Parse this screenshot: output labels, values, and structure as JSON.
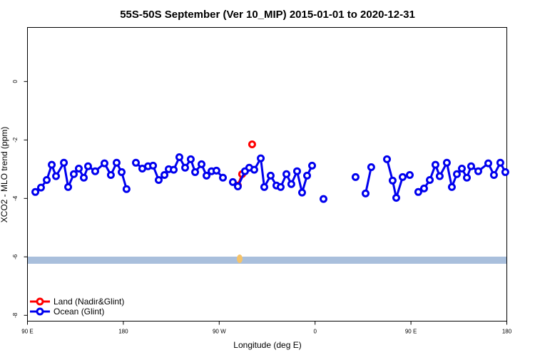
{
  "chart_data": {
    "type": "line",
    "title": "55S-50S September (Ver 10_MIP)   2015-01-01 to 2020-12-31",
    "x_label": "Longitude (deg E)",
    "y_label": "XCO2 - MLO trend (ppm)",
    "xlim": [
      90,
      540
    ],
    "ylim": [
      -8.2,
      1.85
    ],
    "xticks": [
      {
        "value": 90,
        "label": "90 E"
      },
      {
        "value": 180,
        "label": "180"
      },
      {
        "value": 270,
        "label": "90 W"
      },
      {
        "value": 360,
        "label": "0"
      },
      {
        "value": 450,
        "label": "90 E"
      },
      {
        "value": 540,
        "label": "180"
      }
    ],
    "yticks": [
      0,
      -2,
      -4,
      -6,
      -8
    ],
    "legend": "bottom-left",
    "series": [
      {
        "name": "Land (Nadir&Glint)",
        "color": "#ff0000",
        "x": [
          287.5,
          291.5,
          null,
          300.9
        ],
        "values": [
          -3.56,
          -3.17,
          null,
          -2.15
        ]
      },
      {
        "name": "Ocean (Glint)",
        "color": "#0000ee",
        "x": [
          97.4,
          102.7,
          108.1,
          112.8,
          116.8,
          124.2,
          128.2,
          133.5,
          138.2,
          142.9,
          146.9,
          153.6,
          162.3,
          168.3,
          173.7,
          178.4,
          183.0,
          null,
          191.8,
          197.8,
          203.2,
          207.9,
          213.2,
          218.6,
          222.6,
          227.3,
          232.6,
          238.0,
          243.3,
          247.4,
          253.4,
          258.1,
          262.8,
          267.4,
          273.5,
          null,
          282.8,
          287.5,
          294.2,
          298.2,
          302.9,
          309.0,
          312.3,
          318.3,
          323.7,
          327.7,
          333.1,
          337.7,
          343.1,
          347.8,
          352.5,
          357.2,
          null,
          367.9,
          null,
          398.0,
          null,
          407.4,
          412.7,
          null,
          427.5,
          432.8,
          436.2,
          442.2,
          448.9,
          null,
          456.9,
          462.3,
          467.7,
          473.0,
          477.0,
          483.7,
          488.4,
          493.1,
          497.8,
          502.5,
          506.5,
          513.2,
          522.6,
          527.9,
          533.9,
          538.6
        ],
        "values": [
          -3.78,
          -3.63,
          -3.37,
          -2.85,
          -3.24,
          -2.78,
          -3.61,
          -3.17,
          -2.98,
          -3.29,
          -2.9,
          -3.07,
          -2.8,
          -3.2,
          -2.78,
          -3.1,
          -3.68,
          null,
          -2.78,
          -2.98,
          -2.9,
          -2.88,
          -3.37,
          -3.2,
          -3.0,
          -3.02,
          -2.59,
          -2.95,
          -2.66,
          -3.1,
          -2.83,
          -3.22,
          -3.07,
          -3.05,
          -3.29,
          null,
          -3.44,
          -3.59,
          -3.07,
          -2.95,
          -3.02,
          -2.63,
          -3.61,
          -3.22,
          -3.56,
          -3.61,
          -3.17,
          -3.51,
          -3.07,
          -3.8,
          -3.22,
          -2.88,
          null,
          -4.02,
          null,
          -3.27,
          null,
          -3.83,
          -2.93,
          null,
          -2.66,
          -3.39,
          -3.98,
          -3.27,
          -3.2,
          null,
          -3.78,
          -3.66,
          -3.37,
          -2.85,
          -3.24,
          -2.78,
          -3.61,
          -3.17,
          -2.98,
          -3.29,
          -2.9,
          -3.07,
          -2.8,
          -3.2,
          -2.78,
          -3.1
        ]
      }
    ]
  }
}
